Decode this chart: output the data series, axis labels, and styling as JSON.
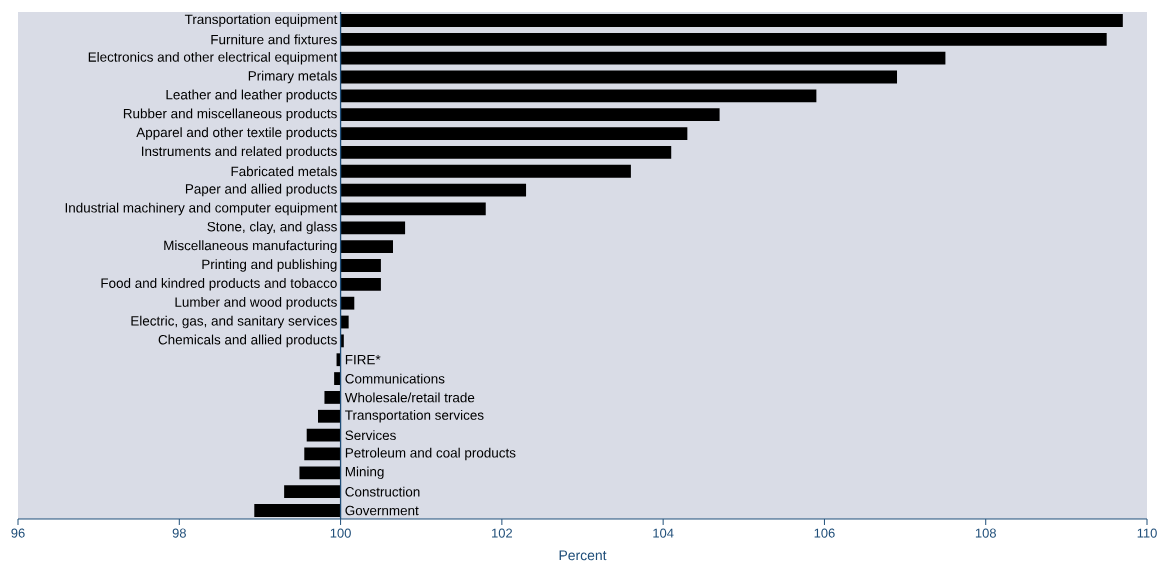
{
  "chart_data": {
    "type": "bar",
    "orientation": "horizontal",
    "xlabel": "Percent",
    "categories": [
      "Transportation equipment",
      "Furniture and fixtures",
      "Electronics and other electrical equipment",
      "Primary metals",
      "Leather and leather products",
      "Rubber and miscellaneous products",
      "Apparel and other textile products",
      "Instruments and related products",
      "Fabricated metals",
      "Paper and allied products",
      "Industrial machinery and computer equipment",
      "Stone, clay, and glass",
      "Miscellaneous manufacturing",
      "Printing and publishing",
      "Food and kindred products and tobacco",
      "Lumber and wood products",
      "Electric, gas, and sanitary services",
      "Chemicals and allied products",
      "FIRE*",
      "Communications",
      "Wholesale/retail trade",
      "Transportation services",
      "Services",
      "Petroleum and coal products",
      "Mining",
      "Construction",
      "Government"
    ],
    "base": [
      100,
      100,
      100,
      100,
      100,
      100,
      100,
      100,
      100,
      100,
      100,
      100,
      100,
      100,
      100,
      100,
      100,
      100,
      100,
      100,
      100,
      100,
      100,
      100,
      100,
      100,
      100
    ],
    "values": [
      9.7,
      9.5,
      7.5,
      6.9,
      5.9,
      4.7,
      4.3,
      4.1,
      3.6,
      2.3,
      1.8,
      0.8,
      0.65,
      0.5,
      0.5,
      0.17,
      0.1,
      0.04,
      -0.05,
      -0.08,
      -0.2,
      -0.28,
      -0.42,
      -0.45,
      -0.51,
      -0.7,
      -1.07
    ],
    "color": "#000000",
    "xlim": [
      96,
      110
    ],
    "xticks": [
      96,
      98,
      100,
      102,
      104,
      106,
      108,
      110
    ]
  }
}
